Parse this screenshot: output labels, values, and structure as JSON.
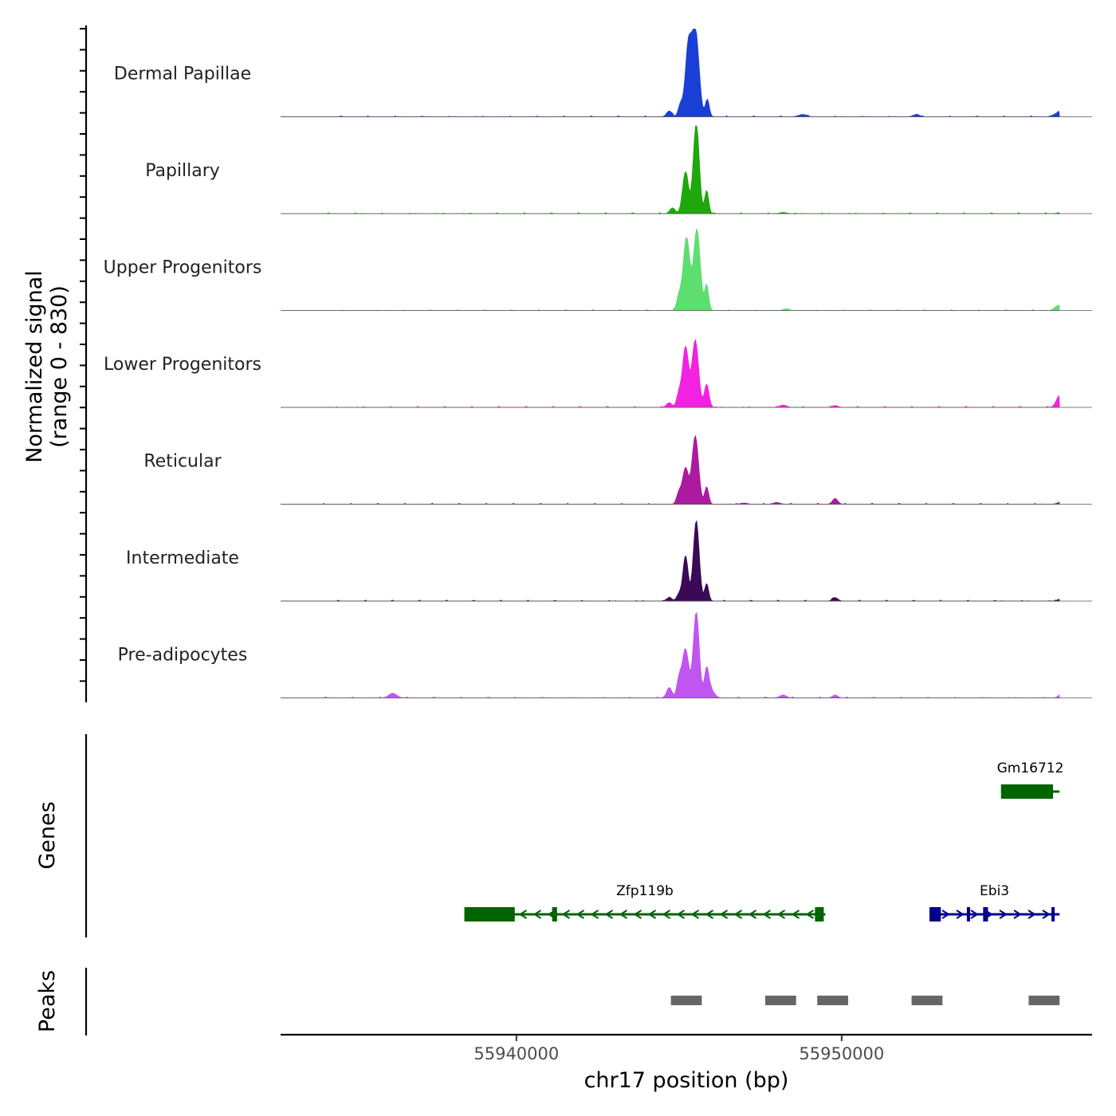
{
  "chart_data": {
    "type": "area",
    "chromosome": "chr17",
    "xlabel": "chr17 position (bp)",
    "xlim": [
      55932750,
      55957700
    ],
    "x_ticks": [
      55940000,
      55950000
    ],
    "x_tick_labels": [
      "55940000",
      "55950000"
    ],
    "signal_ylabel_line1": "Normalized signal",
    "signal_ylabel_line2": "(range 0 - 830)",
    "signal_ylim": [
      0,
      830
    ],
    "genes_label": "Genes",
    "peaks_label": "Peaks",
    "series": [
      {
        "name": "Dermal Papillae",
        "color": "#1a3fd6",
        "peaks": [
          [
            55945280,
            570,
            90
          ],
          [
            55945500,
            760,
            110
          ],
          [
            55945050,
            110,
            70
          ],
          [
            55945870,
            150,
            60
          ],
          [
            55944700,
            50,
            80
          ],
          [
            55956700,
            40,
            150
          ],
          [
            55952300,
            20,
            100
          ],
          [
            55948800,
            20,
            120
          ]
        ]
      },
      {
        "name": "Papillary",
        "color": "#1fa70e",
        "peaks": [
          [
            55945200,
            360,
            90
          ],
          [
            55945530,
            790,
            90
          ],
          [
            55945850,
            200,
            60
          ],
          [
            55944800,
            50,
            80
          ],
          [
            55956800,
            15,
            120
          ],
          [
            55948200,
            10,
            100
          ]
        ]
      },
      {
        "name": "Upper Progenitors",
        "color": "#5cdf6e",
        "peaks": [
          [
            55945230,
            630,
            100
          ],
          [
            55945550,
            700,
            100
          ],
          [
            55945850,
            220,
            60
          ],
          [
            55945000,
            120,
            70
          ],
          [
            55956800,
            70,
            90
          ],
          [
            55956600,
            30,
            80
          ],
          [
            55948300,
            15,
            80
          ]
        ]
      },
      {
        "name": "Lower Progenitors",
        "color": "#f222e0",
        "peaks": [
          [
            55945200,
            520,
            90
          ],
          [
            55945500,
            580,
            100
          ],
          [
            55945850,
            200,
            70
          ],
          [
            55945000,
            120,
            70
          ],
          [
            55944700,
            40,
            80
          ],
          [
            55956700,
            100,
            100
          ],
          [
            55948200,
            20,
            100
          ],
          [
            55949800,
            15,
            80
          ]
        ]
      },
      {
        "name": "Reticular",
        "color": "#ac1aa0",
        "peaks": [
          [
            55945200,
            310,
            90
          ],
          [
            55945500,
            590,
            100
          ],
          [
            55945850,
            150,
            60
          ],
          [
            55945000,
            100,
            70
          ],
          [
            55949800,
            50,
            80
          ],
          [
            55956800,
            30,
            120
          ],
          [
            55948000,
            15,
            100
          ],
          [
            55947000,
            10,
            100
          ]
        ]
      },
      {
        "name": "Intermediate",
        "color": "#3a0a56",
        "peaks": [
          [
            55945200,
            390,
            80
          ],
          [
            55945530,
            690,
            90
          ],
          [
            55945850,
            150,
            60
          ],
          [
            55945000,
            60,
            70
          ],
          [
            55944700,
            30,
            80
          ],
          [
            55949800,
            30,
            80
          ],
          [
            55956800,
            25,
            120
          ]
        ]
      },
      {
        "name": "Pre-adipocytes",
        "color": "#c056f0",
        "peaks": [
          [
            55945200,
            420,
            100
          ],
          [
            55945530,
            740,
            90
          ],
          [
            55945850,
            250,
            70
          ],
          [
            55945000,
            150,
            70
          ],
          [
            55944700,
            90,
            80
          ],
          [
            55946000,
            60,
            100
          ],
          [
            55936200,
            40,
            120
          ],
          [
            55956800,
            50,
            100
          ],
          [
            55948200,
            25,
            100
          ],
          [
            55949800,
            25,
            80
          ]
        ]
      }
    ],
    "genes": [
      {
        "name": "Gm16712",
        "strand": "+",
        "color": "#006400",
        "start": 55954900,
        "end": 55956700,
        "row": 0,
        "exons": [
          [
            55954900,
            55956500
          ]
        ]
      },
      {
        "name": "Zfp119b",
        "strand": "-",
        "color": "#006400",
        "start": 55938400,
        "end": 55949500,
        "row": 1,
        "exons": [
          [
            55938400,
            55939950
          ],
          [
            55941100,
            55941250
          ],
          [
            55949180,
            55949450
          ]
        ]
      },
      {
        "name": "Ebi3",
        "strand": "+",
        "color": "#00008b",
        "start": 55952700,
        "end": 55956700,
        "row": 1,
        "exons": [
          [
            55952700,
            55953050
          ],
          [
            55953850,
            55953950
          ],
          [
            55954350,
            55954500
          ],
          [
            55956450,
            55956550
          ]
        ]
      }
    ],
    "peaks": [
      {
        "start": 55944750,
        "end": 55945700
      },
      {
        "start": 55947650,
        "end": 55948600
      },
      {
        "start": 55949250,
        "end": 55950200
      },
      {
        "start": 55952150,
        "end": 55953100
      },
      {
        "start": 55955750,
        "end": 55956700
      }
    ]
  }
}
